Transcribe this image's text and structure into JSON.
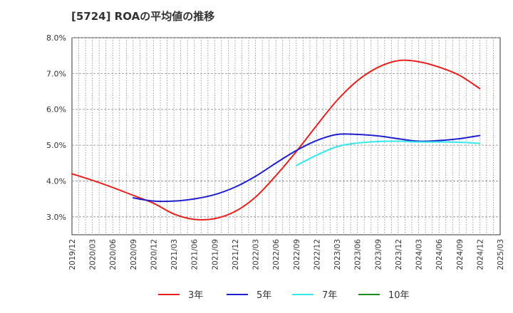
{
  "title": "[5724]  ROAの平均値の推移",
  "chart_data": {
    "type": "line",
    "title": "[5724]  ROAの平均値の推移",
    "xlabel": "",
    "ylabel": "",
    "ylim": [
      2.5,
      8.0
    ],
    "y_ticks": [
      "3.0%",
      "4.0%",
      "5.0%",
      "6.0%",
      "7.0%",
      "8.0%"
    ],
    "y_tick_values": [
      3.0,
      4.0,
      5.0,
      6.0,
      7.0,
      8.0
    ],
    "x_ticks": [
      "2019/12",
      "2020/03",
      "2020/06",
      "2020/09",
      "2020/12",
      "2021/03",
      "2021/06",
      "2021/09",
      "2021/12",
      "2022/03",
      "2022/06",
      "2022/09",
      "2022/12",
      "2023/03",
      "2023/06",
      "2023/09",
      "2023/12",
      "2024/03",
      "2024/06",
      "2024/09",
      "2024/12",
      "2025/03"
    ],
    "grid": true,
    "legend_position": "bottom",
    "series": [
      {
        "name": "3年",
        "color": "#e8201d",
        "x": [
          "2019/12",
          "2020/03",
          "2020/06",
          "2020/09",
          "2020/12",
          "2021/03",
          "2021/06",
          "2021/09",
          "2021/12",
          "2022/03",
          "2022/06",
          "2022/09",
          "2022/12",
          "2023/03",
          "2023/06",
          "2023/09",
          "2023/12",
          "2024/03",
          "2024/06",
          "2024/09",
          "2024/12"
        ],
        "values": [
          4.2,
          4.02,
          3.82,
          3.6,
          3.38,
          3.08,
          2.93,
          2.95,
          3.15,
          3.55,
          4.15,
          4.82,
          5.55,
          6.25,
          6.8,
          7.17,
          7.36,
          7.33,
          7.18,
          6.95,
          6.58
        ]
      },
      {
        "name": "5年",
        "color": "#1f1fd0",
        "x": [
          "2020/09",
          "2020/12",
          "2021/03",
          "2021/06",
          "2021/09",
          "2021/12",
          "2022/03",
          "2022/06",
          "2022/09",
          "2022/12",
          "2023/03",
          "2023/06",
          "2023/09",
          "2023/12",
          "2024/03",
          "2024/06",
          "2024/09",
          "2024/12"
        ],
        "values": [
          3.53,
          3.44,
          3.44,
          3.5,
          3.62,
          3.83,
          4.13,
          4.5,
          4.85,
          5.13,
          5.3,
          5.3,
          5.26,
          5.18,
          5.11,
          5.13,
          5.18,
          5.27
        ]
      },
      {
        "name": "7年",
        "color": "#34e8ec",
        "x": [
          "2022/09",
          "2022/12",
          "2023/03",
          "2023/06",
          "2023/09",
          "2023/12",
          "2024/03",
          "2024/06",
          "2024/09",
          "2024/12"
        ],
        "values": [
          4.43,
          4.72,
          4.96,
          5.06,
          5.1,
          5.11,
          5.09,
          5.09,
          5.08,
          5.05
        ]
      },
      {
        "name": "10年",
        "color": "#1a8a1a",
        "x": [],
        "values": []
      }
    ]
  }
}
